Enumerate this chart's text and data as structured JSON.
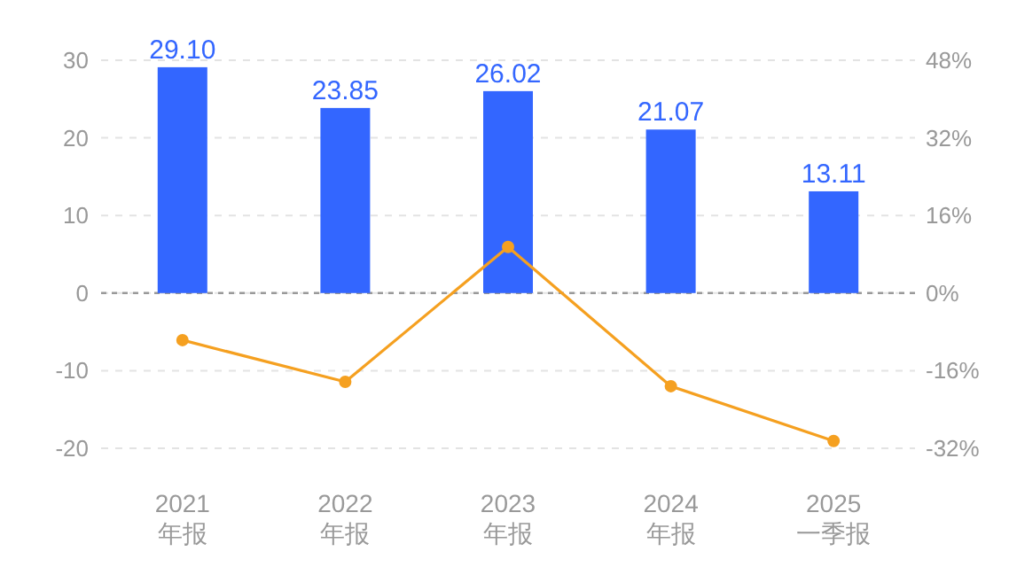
{
  "chart_data": {
    "type": "bar",
    "categories": [
      "2021\n年报",
      "2022\n年报",
      "2023\n年报",
      "2024\n年报",
      "2025\n一季报"
    ],
    "series": [
      {
        "color": "#3366ff",
        "values": [
          29.1,
          23.85,
          26.02,
          21.07,
          13.11
        ],
        "value_labels": [
          "29.10",
          "23.85",
          "26.02",
          "21.07",
          "13.11"
        ]
      },
      {
        "type": "line",
        "axis": "y2",
        "color": "#f5a020",
        "values": [
          -9.7,
          -18.3,
          9.5,
          -19.2,
          -30.5
        ],
        "marker": "circle"
      }
    ],
    "ylim": [
      -20,
      30
    ],
    "yticks": [
      -20,
      -10,
      0,
      10,
      20,
      30
    ],
    "y2lim": [
      -32,
      48
    ],
    "y2ticks": [
      {
        "value": -32,
        "label": "-32%"
      },
      {
        "value": -16,
        "label": "-16%"
      },
      {
        "value": 0,
        "label": "0%"
      },
      {
        "value": 16,
        "label": "16%"
      },
      {
        "value": 32,
        "label": "32%"
      },
      {
        "value": 48,
        "label": "48%"
      }
    ],
    "grid": "y",
    "ref_lines": [
      {
        "axis": "y",
        "value": 0,
        "color": "#999999",
        "line_style": "dashed"
      }
    ]
  }
}
